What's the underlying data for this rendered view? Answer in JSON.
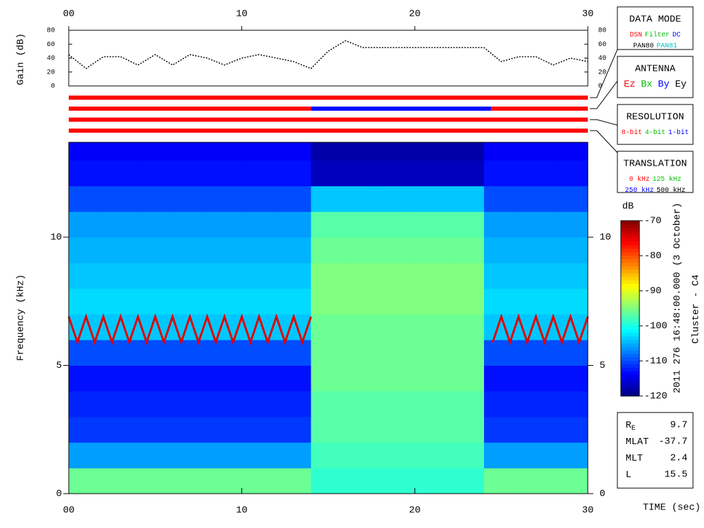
{
  "chart_data": [
    {
      "type": "line",
      "ylabel": "Gain (dB)",
      "color": "#000000",
      "x": [
        0,
        1,
        2,
        3,
        4,
        5,
        6,
        7,
        8,
        9,
        10,
        11,
        12,
        13,
        14,
        15,
        16,
        17,
        18,
        19,
        20,
        21,
        22,
        23,
        24,
        25,
        26,
        27,
        28,
        29,
        30
      ],
      "values": [
        45,
        25,
        42,
        42,
        30,
        45,
        30,
        45,
        40,
        30,
        40,
        45,
        40,
        35,
        25,
        50,
        65,
        55,
        55,
        55,
        55,
        55,
        55,
        55,
        55,
        35,
        42,
        42,
        30,
        40,
        35
      ],
      "xlim": [
        0,
        30
      ],
      "xticks": [
        {
          "value": 0,
          "label": "00"
        },
        10,
        20,
        30
      ],
      "ylim": [
        0,
        80
      ],
      "yticks": [
        0,
        20,
        40,
        60,
        80
      ]
    },
    {
      "type": "status",
      "xlim": [
        0,
        30
      ],
      "rows": [
        {
          "segments": [
            {
              "start": 0,
              "end": 30,
              "color": "#ff0000"
            }
          ]
        },
        {
          "segments": [
            {
              "start": 0,
              "end": 14,
              "color": "#ff0000"
            },
            {
              "start": 14,
              "end": 24.4,
              "color": "#0000ff"
            },
            {
              "start": 24.4,
              "end": 30,
              "color": "#ff0000"
            }
          ]
        },
        {
          "segments": [
            {
              "start": 0,
              "end": 30,
              "color": "#ff0000"
            }
          ]
        },
        {
          "segments": [
            {
              "start": 0,
              "end": 30,
              "color": "#ff0000"
            }
          ]
        }
      ]
    },
    {
      "type": "heatmap",
      "ylabel": "Frequency (kHz)",
      "xlabel": "TIME (sec)",
      "x_bins": [
        0,
        2,
        4,
        6,
        8,
        10,
        12,
        14,
        16,
        18,
        20,
        22,
        24,
        26,
        28,
        30
      ],
      "y_bins": [
        0,
        1,
        2,
        3,
        4,
        5,
        6,
        7,
        8,
        9,
        10,
        11,
        12,
        13,
        13.7
      ],
      "z": [
        [
          -96,
          -96,
          -96,
          -96,
          -96,
          -96,
          -96,
          -99,
          -99,
          -99,
          -99,
          -99,
          -96,
          -96,
          -96
        ],
        [
          -106,
          -106,
          -106,
          -106,
          -106,
          -106,
          -106,
          -98,
          -98,
          -98,
          -98,
          -98,
          -106,
          -106,
          -106
        ],
        [
          -111,
          -111,
          -111,
          -111,
          -111,
          -111,
          -111,
          -97,
          -97,
          -97,
          -97,
          -97,
          -111,
          -111,
          -111
        ],
        [
          -112,
          -112,
          -112,
          -112,
          -112,
          -112,
          -112,
          -97,
          -97,
          -97,
          -97,
          -97,
          -112,
          -112,
          -112
        ],
        [
          -113,
          -113,
          -113,
          -113,
          -113,
          -113,
          -113,
          -96,
          -96,
          -96,
          -96,
          -96,
          -113,
          -113,
          -113
        ],
        [
          -110,
          -110,
          -110,
          -110,
          -110,
          -110,
          -110,
          -96,
          -96,
          -96,
          -96,
          -96,
          -110,
          -110,
          -110
        ],
        [
          -104,
          -104,
          -104,
          -104,
          -104,
          -104,
          -104,
          -96,
          -96,
          -96,
          -96,
          -96,
          -104,
          -104,
          -104
        ],
        [
          -103,
          -103,
          -103,
          -103,
          -103,
          -103,
          -103,
          -95,
          -95,
          -95,
          -95,
          -95,
          -103,
          -103,
          -103
        ],
        [
          -104,
          -104,
          -104,
          -104,
          -104,
          -104,
          -104,
          -95,
          -95,
          -95,
          -95,
          -95,
          -104,
          -104,
          -104
        ],
        [
          -105,
          -105,
          -105,
          -105,
          -105,
          -105,
          -105,
          -96,
          -96,
          -96,
          -96,
          -96,
          -105,
          -105,
          -105
        ],
        [
          -106,
          -106,
          -106,
          -106,
          -106,
          -106,
          -106,
          -97,
          -97,
          -97,
          -97,
          -97,
          -106,
          -106,
          -106
        ],
        [
          -110,
          -110,
          -110,
          -110,
          -110,
          -110,
          -110,
          -104,
          -104,
          -104,
          -104,
          -104,
          -110,
          -110,
          -110
        ],
        [
          -113,
          -113,
          -113,
          -113,
          -113,
          -113,
          -113,
          -117,
          -117,
          -117,
          -117,
          -117,
          -113,
          -113,
          -113
        ],
        [
          -114,
          -114,
          -114,
          -114,
          -114,
          -114,
          -114,
          -118,
          -118,
          -118,
          -118,
          -118,
          -114,
          -114,
          -114
        ]
      ],
      "series": [
        {
          "color": "#e00000",
          "x": [
            0,
            0.5,
            1,
            1.5,
            2,
            2.5,
            3,
            3.5,
            4,
            4.5,
            5,
            5.5,
            6,
            6.5,
            7,
            7.5,
            8,
            8.5,
            9,
            9.5,
            10,
            10.5,
            11,
            11.5,
            12,
            12.5,
            13,
            13.5,
            14,
            14.5,
            15,
            15.5,
            16,
            16.5,
            17,
            17.5,
            18,
            18.5,
            19,
            19.5,
            20,
            20.5,
            21,
            21.5,
            22,
            22.5,
            23,
            23.5,
            24,
            24.5,
            25,
            25.5,
            26,
            26.5,
            27,
            27.5,
            28,
            28.5,
            29,
            29.5,
            30
          ],
          "values": [
            6.9,
            5.9,
            6.9,
            5.9,
            6.9,
            5.9,
            6.9,
            5.9,
            6.9,
            5.9,
            6.9,
            5.9,
            6.9,
            5.9,
            6.9,
            5.9,
            6.9,
            5.9,
            6.9,
            5.9,
            6.9,
            5.9,
            6.9,
            5.9,
            6.9,
            5.9,
            6.9,
            5.9,
            6.9,
            null,
            null,
            null,
            null,
            null,
            null,
            null,
            null,
            null,
            null,
            null,
            null,
            null,
            null,
            null,
            null,
            null,
            null,
            null,
            null,
            5.9,
            6.9,
            5.9,
            6.9,
            5.9,
            6.9,
            5.9,
            6.9,
            5.9,
            6.9,
            5.9,
            6.9
          ]
        }
      ],
      "xlim": [
        0,
        30
      ],
      "xticks": [
        {
          "value": 0,
          "label": "00"
        },
        10,
        20,
        30
      ],
      "ylim": [
        0,
        13.7
      ],
      "yticks": [
        0,
        5,
        10
      ],
      "zlabel": "dB",
      "zlim": [
        -120,
        -70
      ],
      "zticks": [
        -70,
        -80,
        -90,
        -100,
        -110,
        -120
      ]
    }
  ],
  "legend_panels": [
    {
      "title": "DATA MODE",
      "lines": [
        [
          {
            "text": "DSN",
            "color": "#ff0000"
          },
          {
            "text": "Filter",
            "color": "#00c000"
          },
          {
            "text": "DC",
            "color": "#0000ff"
          }
        ],
        [
          {
            "text": "PAN80",
            "color": "#000000"
          },
          {
            "text": "PAN81",
            "color": "#00c0c0"
          }
        ]
      ]
    },
    {
      "title": "ANTENNA",
      "lines": [
        [
          {
            "text": "Ez",
            "color": "#ff0000"
          },
          {
            "text": "Bx",
            "color": "#00c000"
          },
          {
            "text": "By",
            "color": "#0000ff"
          },
          {
            "text": "Ey",
            "color": "#000000"
          }
        ]
      ]
    },
    {
      "title": "RESOLUTION",
      "lines": [
        [
          {
            "text": "8-bit",
            "color": "#ff0000"
          },
          {
            "text": "4-bit",
            "color": "#00c000"
          },
          {
            "text": "1-bit",
            "color": "#0000ff"
          }
        ]
      ]
    },
    {
      "title": "TRANSLATION",
      "lines": [
        [
          {
            "text": "0 kHz",
            "color": "#ff0000"
          },
          {
            "text": "125 kHz",
            "color": "#00c000"
          }
        ],
        [
          {
            "text": "250 kHz",
            "color": "#0000ff"
          },
          {
            "text": "500 kHz",
            "color": "#000000"
          }
        ]
      ]
    }
  ],
  "info": [
    {
      "label": "R",
      "subscript": "E",
      "value": 9.7
    },
    {
      "label": "MLAT",
      "value": -37.7
    },
    {
      "label": "MLT",
      "value": 2.4
    },
    {
      "label": "L",
      "value": 15.5
    }
  ],
  "timestamp": "2011 276 16:48:00.000 (3 October)",
  "spacecraft": "Cluster - C4"
}
